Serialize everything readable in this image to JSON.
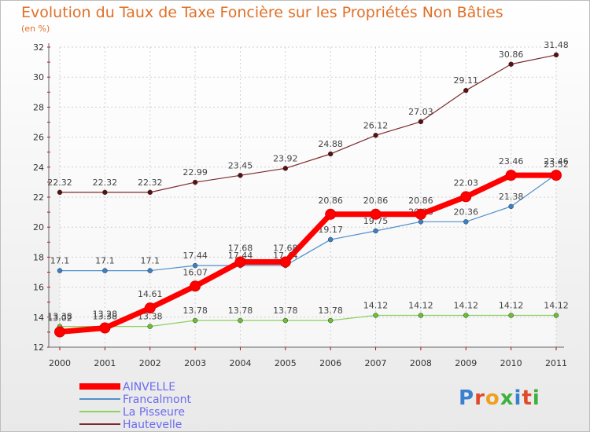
{
  "title": "Evolution du Taux de Taxe Foncière sur les Propriétés Non Bâties",
  "unit": "(en %)",
  "logo": {
    "text": "Proxiti",
    "colors": [
      "#3a7fd0",
      "#e04a2a",
      "#f0a020",
      "#40b040",
      "#3a7fd0",
      "#e04a2a",
      "#40b040"
    ]
  },
  "chart_data": {
    "type": "line",
    "x": [
      "2000",
      "2001",
      "2002",
      "2003",
      "2004",
      "2005",
      "2006",
      "2007",
      "2008",
      "2009",
      "2010",
      "2011"
    ],
    "ylim": [
      12,
      32
    ],
    "yticks": [
      "12",
      "14",
      "16",
      "18",
      "20",
      "22",
      "24",
      "26",
      "28",
      "30",
      "32"
    ],
    "grid": true,
    "legend_position": "bottom-left",
    "series": [
      {
        "name": "Hautevelle",
        "color": "#7a2a2a",
        "marker": "#5a1010",
        "width": 1.2,
        "values": [
          22.32,
          22.32,
          22.32,
          22.99,
          23.45,
          23.92,
          24.88,
          26.12,
          27.03,
          29.11,
          30.86,
          31.48
        ],
        "labels": [
          "22.32",
          "22.32",
          "22.32",
          "22.99",
          "23.45",
          "23.92",
          "24.88",
          "26.12",
          "27.03",
          "29.11",
          "30.86",
          "31.48"
        ]
      },
      {
        "name": "Francalmont",
        "color": "#5090cc",
        "marker": "#3a80c8",
        "width": 1.2,
        "values": [
          17.1,
          17.1,
          17.1,
          17.44,
          17.44,
          17.44,
          19.17,
          19.75,
          20.36,
          20.36,
          21.38,
          23.52
        ],
        "labels": [
          "17.1",
          "17.1",
          "17.1",
          "17.44",
          "17.44",
          "17.44",
          "19.17",
          "19.75",
          "20.36",
          "20.36",
          "21.38",
          "23.52"
        ]
      },
      {
        "name": "La Pisseure",
        "color": "#8cd060",
        "marker": "#6ac030",
        "width": 1.2,
        "values": [
          13.38,
          13.38,
          13.38,
          13.78,
          13.78,
          13.78,
          13.78,
          14.12,
          14.12,
          14.12,
          14.12,
          14.12
        ],
        "labels": [
          "13.38",
          "13.38",
          "13.38",
          "13.78",
          "13.78",
          "13.78",
          "13.78",
          "14.12",
          "14.12",
          "14.12",
          "14.12",
          "14.12"
        ]
      },
      {
        "name": "AINVELLE",
        "color": "#ff0000",
        "marker": "#ff0000",
        "width": 7,
        "values": [
          13.02,
          13.28,
          14.61,
          16.07,
          17.68,
          17.68,
          20.86,
          20.86,
          20.86,
          22.03,
          23.46,
          23.46
        ],
        "labels": [
          "13.02",
          "13.28",
          "14.61",
          "16.07",
          "17.68",
          "17.68",
          "20.86",
          "20.86",
          "20.86",
          "22.03",
          "23.46",
          "23.46"
        ]
      }
    ],
    "legend": [
      "AINVELLE",
      "Francalmont",
      "La Pisseure",
      "Hautevelle"
    ]
  }
}
